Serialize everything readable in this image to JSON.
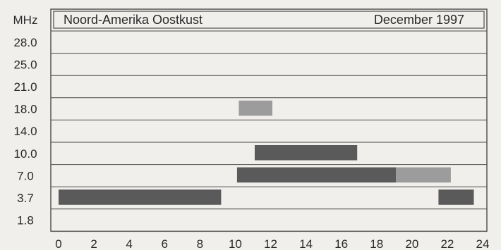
{
  "chart_data": {
    "type": "bar",
    "subtype": "horizontal-range",
    "title": "Noord-Amerika Oostkust",
    "date": "December 1997",
    "ylabel": "MHz",
    "y_categories": [
      "28.0",
      "25.0",
      "21.0",
      "18.0",
      "14.0",
      "10.0",
      "7.0",
      "3.7",
      "1.8"
    ],
    "x_ticks": [
      "0",
      "2",
      "4",
      "6",
      "8",
      "10",
      "12",
      "14",
      "16",
      "18",
      "20",
      "22",
      "24"
    ],
    "xlim": [
      0,
      24
    ],
    "grid": true,
    "legend": "none",
    "colors": {
      "dark": "#5a5a5a",
      "light": "#9c9c9c",
      "frame": "#4a4a4a",
      "background": "#f1efec"
    },
    "bars": [
      {
        "freq": "18.0",
        "start": 10.2,
        "end": 12.1,
        "tone": "light"
      },
      {
        "freq": "10.0",
        "start": 11.1,
        "end": 16.9,
        "tone": "dark"
      },
      {
        "freq": "7.0",
        "start": 10.1,
        "end": 19.1,
        "tone": "dark"
      },
      {
        "freq": "7.0",
        "start": 19.1,
        "end": 22.2,
        "tone": "light"
      },
      {
        "freq": "3.7",
        "start": 0.0,
        "end": 9.2,
        "tone": "dark"
      },
      {
        "freq": "3.7",
        "start": 21.5,
        "end": 23.5,
        "tone": "dark"
      }
    ]
  }
}
